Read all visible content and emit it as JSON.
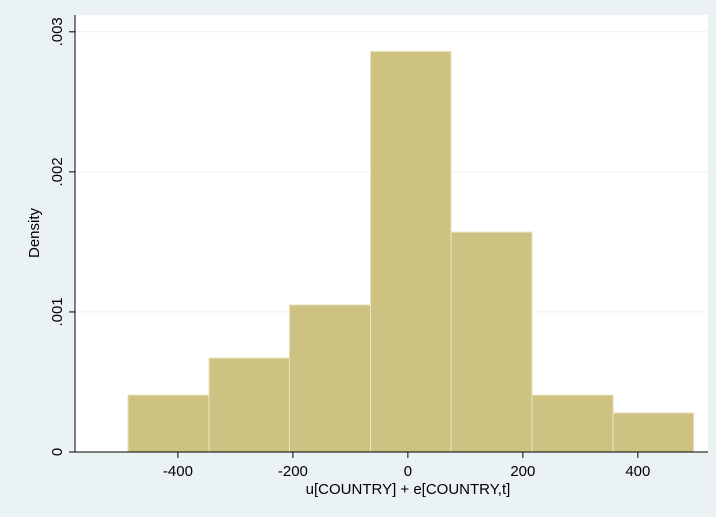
{
  "chart_data": {
    "type": "histogram",
    "x_label": "u[COUNTRY] + e[COUNTRY,t]",
    "y_label": "Density",
    "bins": [
      -487,
      -346,
      -206,
      -65,
      75,
      216,
      357,
      497
    ],
    "values": [
      0.000407,
      0.000671,
      0.00105,
      0.00286,
      0.00157,
      0.000407,
      0.000279
    ],
    "color": "#cdc282",
    "xlim": [
      -579,
      522
    ],
    "xticks": [
      -400,
      -200,
      0,
      200,
      400
    ],
    "ylim": [
      0,
      0.00312
    ],
    "yticks": [
      0,
      {
        "value": 0.001,
        "label": ".001"
      },
      {
        "value": 0.002,
        "label": ".002"
      },
      {
        "value": 0.003,
        "label": ".003"
      }
    ],
    "grid": true
  }
}
